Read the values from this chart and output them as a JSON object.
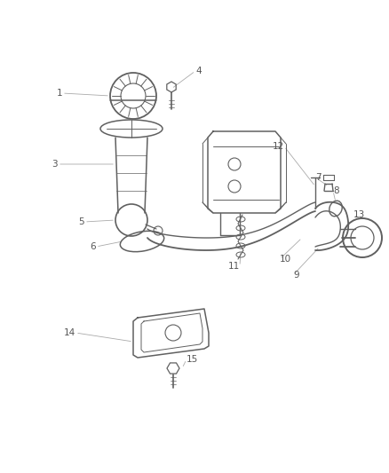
{
  "background_color": "#ffffff",
  "fig_width": 4.38,
  "fig_height": 5.33,
  "dpi": 100,
  "part_color": "#606060",
  "label_color": "#555555",
  "leader_color": "#aaaaaa",
  "label_fontsize": 7.5,
  "lw": 1.0
}
